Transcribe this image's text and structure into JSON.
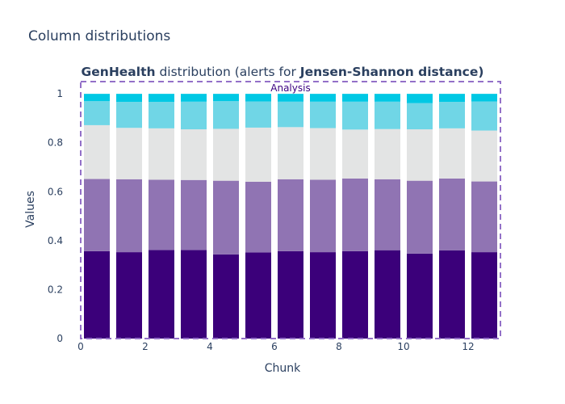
{
  "page_title": "Column distributions",
  "chart_data": {
    "type": "bar",
    "stacked": true,
    "title": {
      "parts": [
        {
          "text": "GenHealth",
          "bold": true
        },
        {
          "text": " distribution (alerts for ",
          "bold": false
        },
        {
          "text": "Jensen-Shannon distance)",
          "bold": true
        }
      ]
    },
    "xlabel": "Chunk",
    "ylabel": "Values",
    "xlim": [
      0,
      13
    ],
    "ylim": [
      0,
      1.05
    ],
    "x_ticks": [
      0,
      2,
      4,
      6,
      8,
      10,
      12
    ],
    "y_ticks": [
      0,
      0.2,
      0.4,
      0.6,
      0.8,
      1
    ],
    "y_tick_labels": [
      "0",
      "0.2",
      "0.4",
      "0.6",
      "0.8",
      "1"
    ],
    "grid": false,
    "region": {
      "label": "Analysis",
      "x_start": 0,
      "x_end": 13,
      "color": "#9370c8"
    },
    "bar_width": 0.8,
    "x": [
      0.5,
      1.5,
      2.5,
      3.5,
      4.5,
      5.5,
      6.5,
      7.5,
      8.5,
      9.5,
      10.5,
      11.5,
      12.5
    ],
    "series": [
      {
        "color": "#3b007a",
        "values": [
          0.357,
          0.353,
          0.362,
          0.362,
          0.344,
          0.352,
          0.357,
          0.353,
          0.357,
          0.361,
          0.347,
          0.36,
          0.353
        ]
      },
      {
        "color": "#9074b3",
        "values": [
          0.295,
          0.298,
          0.287,
          0.286,
          0.301,
          0.289,
          0.294,
          0.296,
          0.297,
          0.29,
          0.298,
          0.294,
          0.289
        ]
      },
      {
        "color": "#e3e4e4",
        "values": [
          0.22,
          0.21,
          0.21,
          0.207,
          0.212,
          0.221,
          0.213,
          0.211,
          0.2,
          0.205,
          0.21,
          0.205,
          0.208
        ]
      },
      {
        "color": "#70d6e6",
        "values": [
          0.098,
          0.106,
          0.108,
          0.113,
          0.113,
          0.107,
          0.104,
          0.108,
          0.114,
          0.112,
          0.107,
          0.108,
          0.119
        ]
      },
      {
        "color": "#00c8e4",
        "values": [
          0.03,
          0.033,
          0.033,
          0.032,
          0.03,
          0.031,
          0.032,
          0.032,
          0.032,
          0.032,
          0.038,
          0.033,
          0.031
        ]
      }
    ]
  }
}
